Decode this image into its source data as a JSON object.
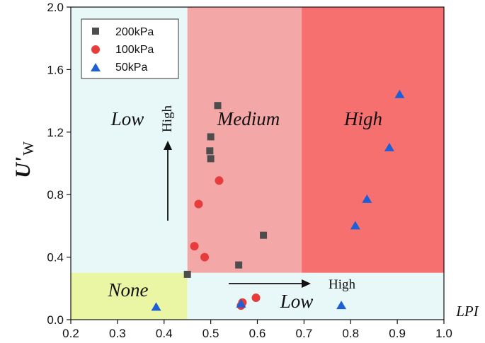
{
  "chart_data": {
    "type": "scatter",
    "xlabel": "LPI",
    "ylabel": "U'",
    "ylabel_sub": "W",
    "xlim": [
      0.2,
      1.0
    ],
    "ylim": [
      0.0,
      2.0
    ],
    "x_ticks": [
      "0.2",
      "0.3",
      "0.4",
      "0.5",
      "0.6",
      "0.7",
      "0.8",
      "0.9",
      "1.0"
    ],
    "y_ticks": [
      "0.0",
      "0.4",
      "0.8",
      "1.2",
      "1.6",
      "2.0"
    ],
    "grid": false,
    "legend_position": "top-left",
    "regions": [
      {
        "name": "low-left",
        "label": "Low",
        "x": [
          0.2,
          0.45
        ],
        "y": [
          0.3,
          2.0
        ],
        "color": "#e8f8f8"
      },
      {
        "name": "none",
        "label": "None",
        "x": [
          0.2,
          0.45
        ],
        "y": [
          0.0,
          0.3
        ],
        "color": "#eaf6a4"
      },
      {
        "name": "low-bottom",
        "label": "Low",
        "x": [
          0.45,
          1.0
        ],
        "y": [
          0.0,
          0.3
        ],
        "color": "#e8f8f8"
      },
      {
        "name": "medium",
        "label": "Medium",
        "x": [
          0.45,
          0.695
        ],
        "y": [
          0.3,
          2.0
        ],
        "color": "#f4a7a7"
      },
      {
        "name": "high",
        "label": "High",
        "x": [
          0.695,
          1.0
        ],
        "y": [
          0.3,
          2.0
        ],
        "color": "#f77070"
      }
    ],
    "arrows": [
      {
        "name": "vertical",
        "label": "High"
      },
      {
        "name": "horizontal",
        "label": "High"
      }
    ],
    "series": [
      {
        "name": "200kPa",
        "marker": "square",
        "color": "#4d4d4d",
        "points": [
          [
            0.45,
            0.29
          ],
          [
            0.515,
            1.37
          ],
          [
            0.5,
            1.17
          ],
          [
            0.498,
            1.08
          ],
          [
            0.5,
            1.03
          ],
          [
            0.56,
            0.35
          ],
          [
            0.613,
            0.54
          ]
        ]
      },
      {
        "name": "100kPa",
        "marker": "circle",
        "color": "#e83c3c",
        "points": [
          [
            0.518,
            0.89
          ],
          [
            0.474,
            0.74
          ],
          [
            0.465,
            0.47
          ],
          [
            0.487,
            0.4
          ],
          [
            0.565,
            0.09
          ],
          [
            0.568,
            0.11
          ],
          [
            0.597,
            0.14
          ]
        ]
      },
      {
        "name": "50kPa",
        "marker": "triangle",
        "color": "#1f5fd6",
        "points": [
          [
            0.905,
            1.44
          ],
          [
            0.883,
            1.1
          ],
          [
            0.835,
            0.77
          ],
          [
            0.81,
            0.6
          ],
          [
            0.383,
            0.08
          ],
          [
            0.565,
            0.1
          ],
          [
            0.78,
            0.09
          ]
        ]
      }
    ]
  }
}
